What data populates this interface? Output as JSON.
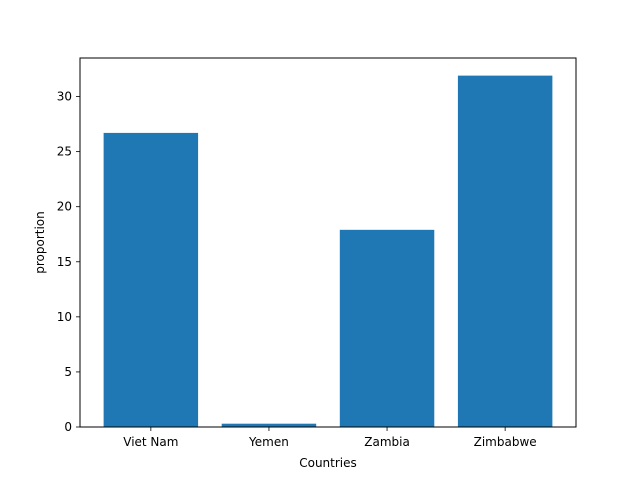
{
  "chart_data": {
    "type": "bar",
    "categories": [
      "Viet Nam",
      "Yemen",
      "Zambia",
      "Zimbabwe"
    ],
    "values": [
      26.7,
      0.3,
      17.9,
      31.9
    ],
    "xlabel": "Countries",
    "ylabel": "proportion",
    "ylim": [
      0,
      33.5
    ],
    "yticks": [
      0,
      5,
      10,
      15,
      20,
      25,
      30
    ],
    "grid": false,
    "bar_color": "#1f77b4"
  }
}
